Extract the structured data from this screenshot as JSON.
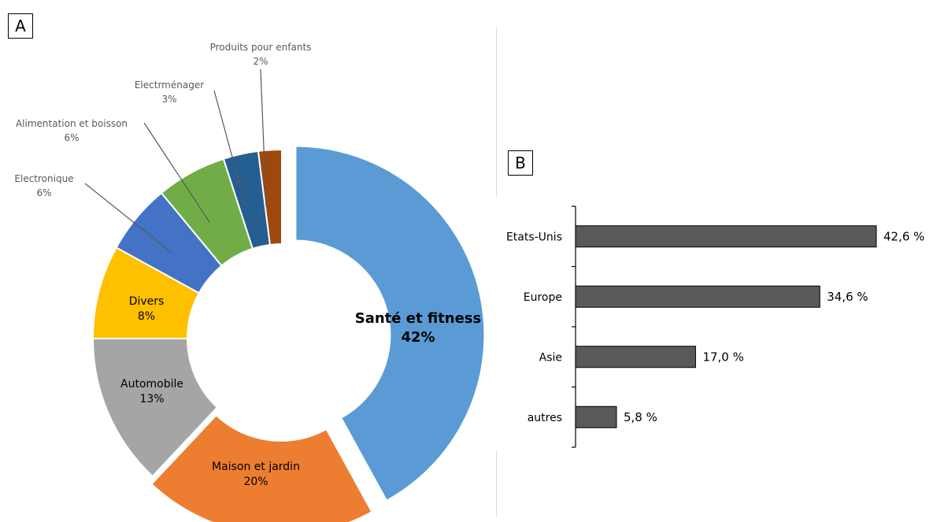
{
  "panels": {
    "a": "A",
    "b": "B"
  },
  "chart_data": [
    {
      "type": "pie",
      "donut": true,
      "slices": [
        {
          "label": "Santé et fitness",
          "value": 42,
          "pct": "42%",
          "color": "#5B9BD5"
        },
        {
          "label": "Maison et jardin",
          "value": 20,
          "pct": "20%",
          "color": "#ED7D31"
        },
        {
          "label": "Automobile",
          "value": 13,
          "pct": "13%",
          "color": "#A5A5A5"
        },
        {
          "label": "Divers",
          "value": 8,
          "pct": "8%",
          "color": "#FFC000"
        },
        {
          "label": "Electronique",
          "value": 6,
          "pct": "6%",
          "color": "#4472C4"
        },
        {
          "label": "Alimentation et boisson",
          "value": 6,
          "pct": "6%",
          "color": "#70AD47"
        },
        {
          "label": "Electrménager",
          "value": 3,
          "pct": "3%",
          "color": "#255E91"
        },
        {
          "label": "Produits pour enfants",
          "value": 2,
          "pct": "2%",
          "color": "#9E480E"
        }
      ]
    },
    {
      "type": "bar",
      "orientation": "horizontal",
      "categories": [
        "Etats-Unis",
        "Europe",
        "Asie",
        "autres"
      ],
      "values": [
        42.6,
        34.6,
        17.0,
        5.8
      ],
      "value_labels": [
        "42,6 %",
        "34,6 %",
        "17,0 %",
        "5,8 %"
      ],
      "color": "#595959",
      "grid": false
    }
  ]
}
